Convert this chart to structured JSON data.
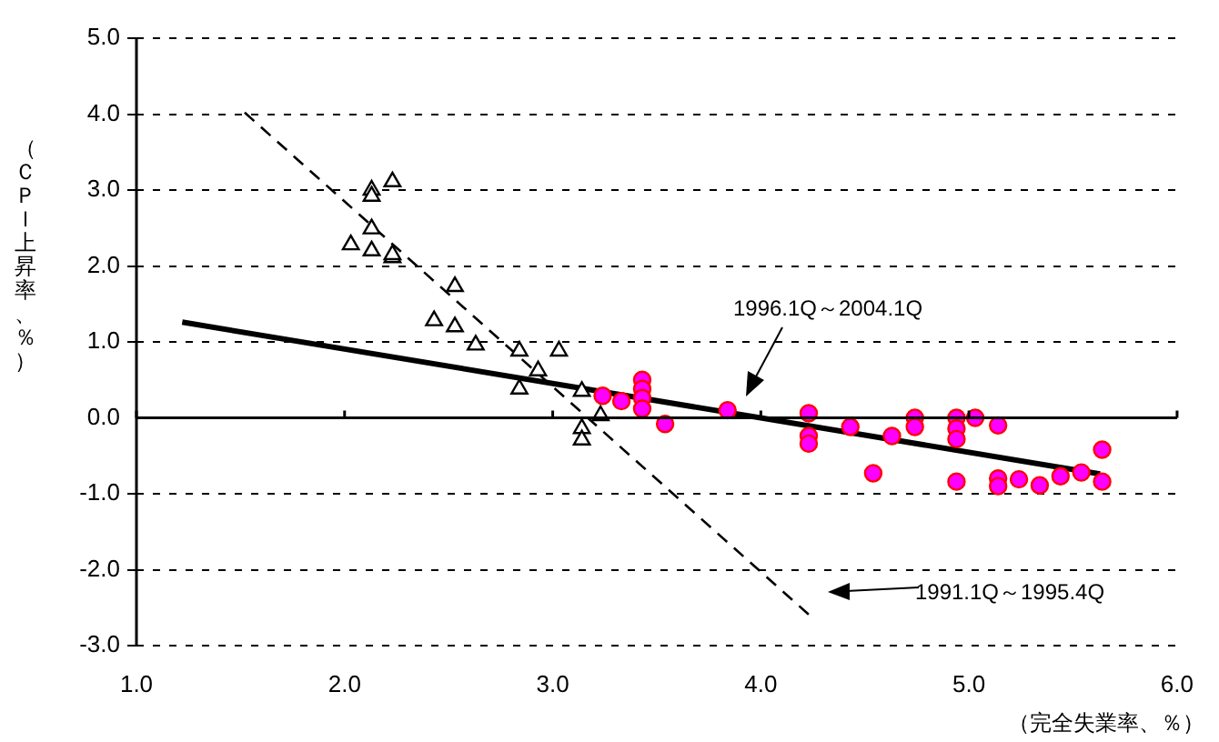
{
  "chart_data": {
    "type": "scatter",
    "xlabel": "（完全失業率、％）",
    "ylabel": "（ＣＰＩ上昇率、％）",
    "xlim": [
      1.0,
      6.0
    ],
    "xticks": [
      {
        "value": 1,
        "label": "1.0"
      },
      {
        "value": 2,
        "label": "2.0"
      },
      {
        "value": 3,
        "label": "3.0"
      },
      {
        "value": 4,
        "label": "4.0"
      },
      {
        "value": 5,
        "label": "5.0"
      },
      {
        "value": 6,
        "label": "6.0"
      }
    ],
    "ylim": [
      -3.0,
      5.0
    ],
    "yticks": [
      {
        "value": -3,
        "label": "-3.0"
      },
      {
        "value": -2,
        "label": "-2.0"
      },
      {
        "value": -1,
        "label": "-1.0"
      },
      {
        "value": 0,
        "label": "0.0"
      },
      {
        "value": 1,
        "label": "1.0"
      },
      {
        "value": 2,
        "label": "2.0"
      },
      {
        "value": 3,
        "label": "3.0"
      },
      {
        "value": 4,
        "label": "4.0"
      },
      {
        "value": 5,
        "label": "5.0"
      }
    ],
    "grid": "y",
    "legend": false,
    "series": [
      {
        "type": "scatter",
        "marker": "triangle",
        "color": "#000000",
        "x": [
          2.13,
          2.13,
          2.23,
          2.13,
          2.03,
          2.13,
          2.23,
          2.23,
          2.53,
          2.43,
          2.53,
          2.63,
          2.84,
          2.84,
          2.93,
          3.03,
          3.14,
          3.14,
          3.14,
          3.23
        ],
        "values": [
          3.0,
          2.92,
          3.11,
          2.49,
          2.28,
          2.2,
          2.11,
          2.15,
          1.73,
          1.28,
          1.2,
          0.96,
          0.88,
          0.38,
          0.62,
          0.88,
          0.35,
          -0.14,
          -0.29,
          0.03
        ]
      },
      {
        "type": "scatter",
        "marker": "circle",
        "color": "#ff00ff",
        "x": [
          3.24,
          3.33,
          3.43,
          3.43,
          3.43,
          3.43,
          3.54,
          3.84,
          4.23,
          4.23,
          4.23,
          4.43,
          4.54,
          4.63,
          4.74,
          4.74,
          4.94,
          4.94,
          4.94,
          4.94,
          5.03,
          5.14,
          5.14,
          5.14,
          5.24,
          5.34,
          5.44,
          5.54,
          5.64,
          5.64
        ],
        "values": [
          0.29,
          0.22,
          0.5,
          0.38,
          0.26,
          0.12,
          -0.08,
          0.1,
          0.06,
          -0.24,
          -0.34,
          -0.12,
          -0.73,
          -0.24,
          0.0,
          -0.12,
          0.0,
          -0.14,
          -0.28,
          -0.84,
          0.0,
          -0.1,
          -0.8,
          -0.9,
          -0.81,
          -0.89,
          -0.77,
          -0.72,
          -0.42,
          -0.84
        ]
      },
      {
        "type": "line",
        "marker": "none",
        "line_style": "solid",
        "color": "#000000",
        "x": [
          1.22,
          5.63
        ],
        "values": [
          1.26,
          -0.74
        ]
      },
      {
        "type": "line",
        "marker": "none",
        "line_style": "dashed",
        "color": "#000000",
        "x": [
          1.52,
          4.23
        ],
        "values": [
          4.02,
          -2.59
        ]
      }
    ],
    "annotations": [
      "1996.1Q～2004.1Q",
      "1991.1Q～1995.4Q"
    ]
  }
}
